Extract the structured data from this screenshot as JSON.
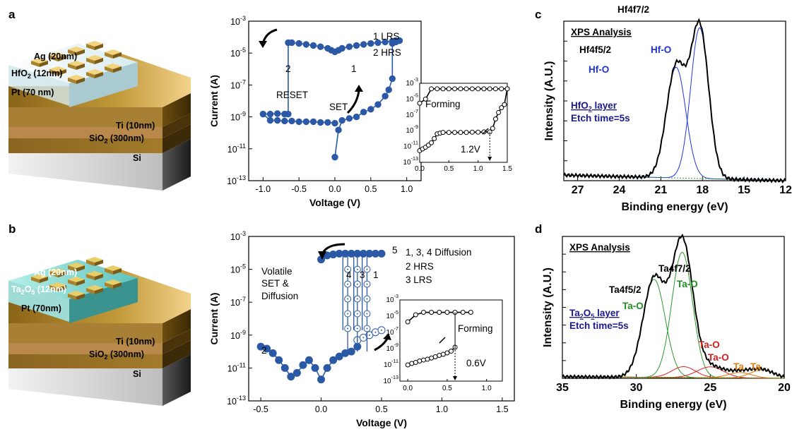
{
  "panels": [
    "a",
    "b",
    "c",
    "d"
  ],
  "device_a": {
    "layers": [
      "Ag (20nm)",
      "HfO2 (12nm)",
      "Pt (70 nm)",
      "Ti (10nm)",
      "SiO2 (300nm)",
      "Si"
    ]
  },
  "device_b": {
    "layers": [
      "Ag (20nm)",
      "Ta2O5 (12nm)",
      "Pt (70nm)",
      "Ti (10nm)",
      "SiO2 (300nm)",
      "Si"
    ]
  },
  "chart_data": [
    {
      "id": "a-iv",
      "type": "line",
      "xlabel": "Voltage (V)",
      "ylabel": "Current (A)",
      "xlim": [
        -1.2,
        1.2
      ],
      "ylim": [
        1e-13,
        0.001
      ],
      "yscale": "log",
      "xticks": [
        "-1.0",
        "-0.5",
        "0.0",
        "0.5",
        "1.0"
      ],
      "yticks": [
        "10-13",
        "10-11",
        "10-9",
        "10-7",
        "10-5",
        "10-3"
      ],
      "annotations": [
        "1 LRS",
        "2 HRS",
        "RESET",
        "SET",
        "1",
        "2"
      ],
      "series": [
        {
          "x": [
            0,
            0.05,
            0.1,
            0.2,
            0.3,
            0.4,
            0.5,
            0.6,
            0.7,
            0.75,
            0.8,
            0.8,
            0.85,
            0.9,
            0.85,
            0.8,
            0.7,
            0.6,
            0.5,
            0.4,
            0.3,
            0.2,
            0.1,
            0.05,
            0,
            -0.05,
            -0.1,
            -0.2,
            -0.3,
            -0.4,
            -0.5,
            -0.6,
            -0.65,
            -0.65,
            -0.7,
            -0.8,
            -0.9,
            -1.0,
            -0.9,
            -0.8,
            -0.7,
            -0.6,
            -0.5,
            -0.4,
            -0.3,
            -0.2,
            -0.1,
            0
          ],
          "y": [
            3e-12,
            1.5e-10,
            6e-10,
            8e-10,
            1e-09,
            2e-09,
            3e-09,
            6e-09,
            2e-08,
            5e-08,
            2.5e-07,
            4e-05,
            5e-05,
            6e-05,
            6e-05,
            5.5e-05,
            5e-05,
            4.5e-05,
            4e-05,
            3.5e-05,
            3e-05,
            2.5e-05,
            2e-05,
            1.5e-05,
            1.2e-05,
            1.5e-05,
            2e-05,
            2.5e-05,
            3e-05,
            3.5e-05,
            4e-05,
            4.5e-05,
            4.5e-05,
            1.5e-09,
            1.5e-09,
            1.6e-09,
            1.5e-09,
            1.5e-09,
            6e-10,
            6e-10,
            5.5e-10,
            5.5e-10,
            5e-10,
            5e-10,
            5e-10,
            4.5e-10,
            4.5e-10,
            4e-10
          ]
        }
      ],
      "inset": {
        "xlim": [
          0,
          1.5
        ],
        "ylim": [
          1e-13,
          0.001
        ],
        "xticks": [
          "0.0",
          "0.5",
          "1.0",
          "1.5"
        ],
        "yticks": [
          "10-13",
          "10-11",
          "10-9",
          "10-7",
          "10-5",
          "10-3"
        ],
        "annotations": [
          "Forming",
          "1.2V"
        ],
        "series": [
          {
            "x": [
              0.0,
              0.05,
              0.1,
              0.15,
              0.2,
              0.25,
              0.3,
              0.35,
              0.4,
              0.5,
              0.6,
              0.7,
              0.8,
              0.9,
              1.0,
              1.1,
              1.2,
              1.25,
              1.3,
              1.35,
              1.4,
              1.45,
              1.5
            ],
            "y": [
              3e-12,
              5e-12,
              8e-12,
              1.5e-11,
              3e-11,
              1e-10,
              4e-10,
              5e-10,
              6e-10,
              6e-10,
              6e-10,
              6e-10,
              6e-10,
              6.5e-10,
              6.5e-10,
              7e-10,
              7e-10,
              2e-09,
              3e-08,
              2e-07,
              8e-07,
              2e-06,
              0.0002
            ]
          },
          {
            "x": [
              0.0,
              0.1,
              0.2,
              0.3,
              0.4,
              0.5,
              0.6,
              0.7,
              0.8,
              0.9,
              1.0,
              1.1,
              1.2,
              1.3,
              1.4,
              1.5
            ],
            "y": [
              3e-06,
              1e-05,
              0.0002,
              0.0002,
              0.0002,
              0.0002,
              0.0002,
              0.0002,
              0.0002,
              0.0002,
              0.0002,
              0.0002,
              0.0002,
              0.0002,
              0.0002,
              0.0002
            ]
          }
        ]
      }
    },
    {
      "id": "b-iv",
      "type": "scatter",
      "xlabel": "Voltage (V)",
      "ylabel": "Current (A)",
      "xlim": [
        -0.6,
        1.6
      ],
      "ylim": [
        1e-13,
        0.001
      ],
      "yscale": "log",
      "xticks": [
        "-0.5",
        "0.0",
        "0.5",
        "1.0",
        "1.5"
      ],
      "yticks": [
        "10-13",
        "10-11",
        "10-9",
        "10-7",
        "10-5",
        "10-3"
      ],
      "annotations": [
        "1, 3, 4 Diffusion",
        "2 HRS",
        "3 LRS",
        "Volatile",
        "SET &",
        "Diffusion",
        "1",
        "2",
        "3",
        "4",
        "5"
      ],
      "series": [
        {
          "x": [
            -0.5,
            -0.45,
            -0.4,
            -0.35,
            -0.3,
            -0.25,
            -0.2,
            -0.15,
            -0.1,
            -0.05,
            0,
            0.05,
            0.1,
            0.15,
            0.2,
            0.25,
            0.3
          ],
          "y": [
            2e-10,
            1.5e-10,
            8e-11,
            3e-11,
            1e-11,
            3e-12,
            5e-12,
            1.5e-11,
            3e-11,
            1e-11,
            2e-12,
            1e-11,
            3e-11,
            5e-11,
            8e-11,
            1e-10,
            2e-10
          ]
        },
        {
          "x": [
            0.3,
            0.35,
            0.4,
            0.45,
            0.5
          ],
          "y": [
            5e-10,
            7e-10,
            1e-09,
            1.5e-09,
            2e-09
          ]
        },
        {
          "x": [
            0.0,
            0.05,
            0.1,
            0.15,
            0.2,
            0.25,
            0.3,
            0.35,
            0.4,
            0.45,
            0.5
          ],
          "y": [
            4e-05,
            7e-05,
            8e-05,
            9e-05,
            9e-05,
            9e-05,
            9e-05,
            9e-05,
            9e-05,
            9e-05,
            9e-05
          ]
        }
      ],
      "inset": {
        "xlim": [
          -0.1,
          1.2
        ],
        "ylim": [
          1e-13,
          0.001
        ],
        "xticks": [
          "0.0",
          "0.5",
          "1.0"
        ],
        "yticks": [
          "10-13",
          "10-11",
          "10-9",
          "10-7",
          "10-5",
          "10-3"
        ],
        "annotations": [
          "Forming",
          "0.6V"
        ],
        "series": [
          {
            "x": [
              0.0,
              0.05,
              0.1,
              0.15,
              0.2,
              0.25,
              0.3,
              0.35,
              0.4,
              0.45,
              0.5,
              0.55,
              0.6
            ],
            "y": [
              1e-11,
              1.5e-11,
              2e-11,
              3e-11,
              4e-11,
              5e-11,
              7e-11,
              1e-10,
              1.5e-10,
              2e-10,
              3e-10,
              5e-10,
              1.5e-09
            ]
          },
          {
            "x": [
              0.0,
              0.1,
              0.2,
              0.3,
              0.4,
              0.5,
              0.6,
              0.7,
              0.8
            ],
            "y": [
              2e-06,
              1.5e-05,
              3e-05,
              3e-05,
              3e-05,
              3e-05,
              3e-05,
              3e-05,
              3e-05
            ]
          }
        ]
      }
    },
    {
      "id": "c-xps",
      "type": "line",
      "xlabel": "Binding energy (eV)",
      "ylabel": "Intensity (A.U.)",
      "xlim": [
        28,
        12
      ],
      "xticks": [
        "27",
        "24",
        "21",
        "18",
        "15",
        "12"
      ],
      "title": "XPS Analysis",
      "annotations": [
        "HfO2 layer",
        "Etch time=5s",
        "Hf4f7/2",
        "Hf4f5/2",
        "Hf-O",
        "Hf-O"
      ],
      "peaks": [
        {
          "name": "Hf4f5/2",
          "center": 19.9,
          "amplitude": 0.72,
          "width": 0.7
        },
        {
          "name": "Hf4f7/2",
          "center": 18.2,
          "amplitude": 0.98,
          "width": 0.65
        }
      ],
      "baseline": 0.06
    },
    {
      "id": "d-xps",
      "type": "line",
      "xlabel": "Binding energy (eV)",
      "ylabel": "Intensity (A.U.)",
      "xlim": [
        35,
        20
      ],
      "xticks": [
        "35",
        "30",
        "25",
        "20"
      ],
      "title": "XPS Analysis",
      "annotations": [
        "Ta2O5 layer",
        "Etch time=5s",
        "Ta4f7/2",
        "Ta4f5/2",
        "Ta-O",
        "Ta-O",
        "Ta-O",
        "Ta-O",
        "Ta",
        "Ta"
      ],
      "peaks": [
        {
          "name": "Ta4f5/2",
          "center": 28.8,
          "amplitude": 0.72,
          "width": 0.75
        },
        {
          "name": "Ta4f7/2",
          "center": 26.9,
          "amplitude": 0.92,
          "width": 0.7
        },
        {
          "name": "Ta-O",
          "center": 26.8,
          "amplitude": 0.08,
          "width": 0.8
        },
        {
          "name": "Ta-O",
          "center": 25.0,
          "amplitude": 0.08,
          "width": 0.9
        },
        {
          "name": "Ta",
          "center": 23.0,
          "amplitude": 0.04,
          "width": 0.8
        },
        {
          "name": "Ta",
          "center": 21.5,
          "amplitude": 0.06,
          "width": 0.8
        }
      ],
      "baseline": 0.02
    }
  ],
  "colors": {
    "data_blue": "#2b59a6",
    "fit_blue": "#2233dd",
    "fit_green": "#2a9a2a",
    "fit_red": "#dd2222",
    "fit_orange": "#e07a10",
    "label_blue": "#2233cc",
    "label_green": "#1f8f1f",
    "label_red": "#d02020",
    "label_orange": "#e08010",
    "label_navy": "#1a1a8a"
  }
}
